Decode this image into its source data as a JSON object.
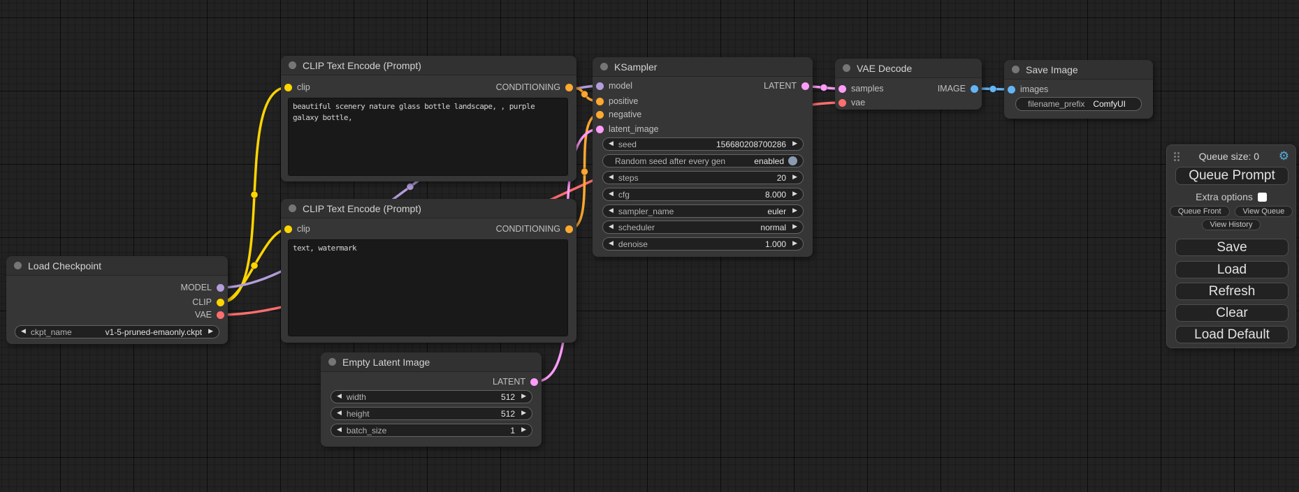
{
  "colors": {
    "model": "#B39DDB",
    "clip": "#FFD500",
    "vae": "#FF6E6E",
    "conditioning": "#FFA931",
    "latent": "#FF9CF9",
    "image": "#64B5F6",
    "toggle_on": "#8A9BB0",
    "gear": "#58AEE0"
  },
  "icons": {
    "left_arrow": "◀",
    "right_arrow": "▶",
    "gear": "⚙"
  },
  "nodes": {
    "load_checkpoint": {
      "title": "Load Checkpoint",
      "outputs": [
        "MODEL",
        "CLIP",
        "VAE"
      ],
      "widget": {
        "label": "ckpt_name",
        "value": "v1-5-pruned-emaonly.ckpt"
      }
    },
    "clip_positive": {
      "title": "CLIP Text Encode (Prompt)",
      "input": "clip",
      "output": "CONDITIONING",
      "text": "beautiful scenery nature glass bottle landscape, , purple galaxy bottle,"
    },
    "clip_negative": {
      "title": "CLIP Text Encode (Prompt)",
      "input": "clip",
      "output": "CONDITIONING",
      "text": "text, watermark"
    },
    "empty_latent": {
      "title": "Empty Latent Image",
      "output": "LATENT",
      "widgets": [
        {
          "label": "width",
          "value": "512"
        },
        {
          "label": "height",
          "value": "512"
        },
        {
          "label": "batch_size",
          "value": "1"
        }
      ]
    },
    "ksampler": {
      "title": "KSampler",
      "inputs": [
        "model",
        "positive",
        "negative",
        "latent_image"
      ],
      "output": "LATENT",
      "widgets": [
        {
          "label": "seed",
          "value": "156680208700286"
        },
        {
          "label": "Random seed after every gen",
          "value": "enabled"
        },
        {
          "label": "steps",
          "value": "20"
        },
        {
          "label": "cfg",
          "value": "8.000"
        },
        {
          "label": "sampler_name",
          "value": "euler"
        },
        {
          "label": "scheduler",
          "value": "normal"
        },
        {
          "label": "denoise",
          "value": "1.000"
        }
      ]
    },
    "vae_decode": {
      "title": "VAE Decode",
      "inputs": [
        "samples",
        "vae"
      ],
      "output": "IMAGE"
    },
    "save_image": {
      "title": "Save Image",
      "input": "images",
      "widget": {
        "label": "filename_prefix",
        "value": "ComfyUI"
      }
    }
  },
  "menu": {
    "queue_size": "Queue size: 0",
    "queue_prompt": "Queue Prompt",
    "extra_options": "Extra options",
    "queue_front": "Queue Front",
    "view_queue": "View Queue",
    "view_history": "View History",
    "save": "Save",
    "load": "Load",
    "refresh": "Refresh",
    "clear": "Clear",
    "load_default": "Load Default"
  }
}
